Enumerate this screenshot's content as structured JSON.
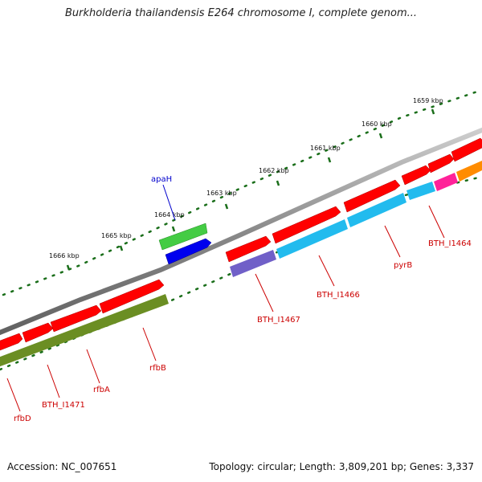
{
  "title": "Burkholderia thailandensis E264 chromosome I, complete genom...",
  "footer": {
    "accession": "Accession: NC_007651",
    "topology": "Topology: circular; Length: 3,809,201 bp; Genes: 3,337"
  },
  "scale_labels": [
    "1659 kbp",
    "1660 kbp",
    "1661 kbp",
    "1662 kbp",
    "1663 kbp",
    "1664 kbp",
    "1665 kbp",
    "1666 kbp"
  ],
  "gene_labels": [
    {
      "text": "apaH",
      "color": "#0000cc"
    },
    {
      "text": "BTH_I1464",
      "color": "#cc0000"
    },
    {
      "text": "pyrB",
      "color": "#cc0000"
    },
    {
      "text": "BTH_I1466",
      "color": "#cc0000"
    },
    {
      "text": "BTH_I1467",
      "color": "#cc0000"
    },
    {
      "text": "rfbB",
      "color": "#cc0000"
    },
    {
      "text": "rfbA",
      "color": "#cc0000"
    },
    {
      "text": "BTH_I1471",
      "color": "#cc0000"
    },
    {
      "text": "rfbD",
      "color": "#cc0000"
    }
  ],
  "colors": {
    "backbone": "#808080",
    "gene": "#ff0000",
    "cog_cyan": "#22bbee",
    "cog_olive": "#6b8e23",
    "cog_purple": "#7060c8",
    "cog_pink": "#ff2299",
    "cog_orange": "#ff8c00",
    "rna_green": "#44cc44",
    "cog_blue": "#0000ee",
    "ticks": "#1a6e1a"
  }
}
